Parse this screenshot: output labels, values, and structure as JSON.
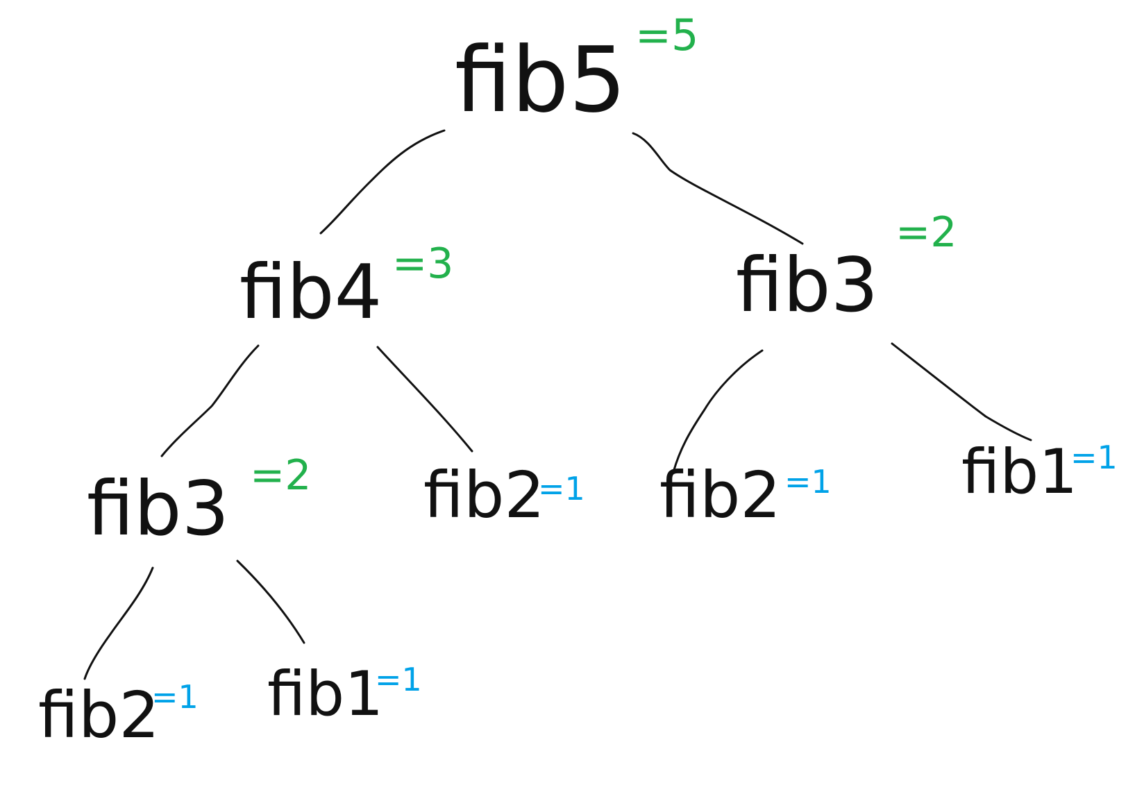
{
  "colors": {
    "stroke": "#111111",
    "result_internal": "#22b14c",
    "result_leaf": "#00a2e8",
    "background": "#ffffff"
  },
  "tree": {
    "nodes": [
      {
        "id": "n0",
        "label": "fib5",
        "result": "=5",
        "kind": "internal"
      },
      {
        "id": "n1",
        "label": "fib4",
        "result": "=3",
        "kind": "internal"
      },
      {
        "id": "n2",
        "label": "fib3",
        "result": "=2",
        "kind": "internal"
      },
      {
        "id": "n3",
        "label": "fib3",
        "result": "=2",
        "kind": "internal"
      },
      {
        "id": "n4",
        "label": "fib2",
        "result": "=1",
        "kind": "leaf"
      },
      {
        "id": "n5",
        "label": "fib2",
        "result": "=1",
        "kind": "leaf"
      },
      {
        "id": "n6",
        "label": "fib1",
        "result": "=1",
        "kind": "leaf"
      },
      {
        "id": "n7",
        "label": "fib2",
        "result": "=1",
        "kind": "leaf"
      },
      {
        "id": "n8",
        "label": "fib1",
        "result": "=1",
        "kind": "leaf"
      }
    ],
    "edges": [
      {
        "from": "n0",
        "to": "n1"
      },
      {
        "from": "n0",
        "to": "n2"
      },
      {
        "from": "n1",
        "to": "n3"
      },
      {
        "from": "n1",
        "to": "n4"
      },
      {
        "from": "n2",
        "to": "n5"
      },
      {
        "from": "n2",
        "to": "n6"
      },
      {
        "from": "n3",
        "to": "n7"
      },
      {
        "from": "n3",
        "to": "n8"
      }
    ]
  }
}
